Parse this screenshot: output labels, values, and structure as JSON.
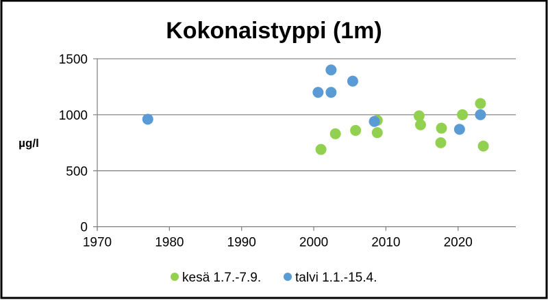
{
  "chart_data": {
    "type": "scatter",
    "title": "Kokonaistyppi (1m)",
    "xlabel": "",
    "ylabel": "µg/l",
    "xlim": [
      1970,
      2028
    ],
    "ylim": [
      0,
      1500
    ],
    "xticks": [
      1970,
      1980,
      1990,
      2000,
      2010,
      2020
    ],
    "yticks": [
      0,
      500,
      1000,
      1500
    ],
    "grid": "horizontal",
    "legend_position": "bottom",
    "series": [
      {
        "name": "kesä 1.7.-7.9.",
        "color": "#92d050",
        "points": [
          {
            "x": 2001.0,
            "y": 690
          },
          {
            "x": 2003.0,
            "y": 830
          },
          {
            "x": 2005.8,
            "y": 860
          },
          {
            "x": 2008.8,
            "y": 950
          },
          {
            "x": 2008.8,
            "y": 840
          },
          {
            "x": 2014.6,
            "y": 990
          },
          {
            "x": 2014.8,
            "y": 910
          },
          {
            "x": 2017.7,
            "y": 880
          },
          {
            "x": 2017.6,
            "y": 750
          },
          {
            "x": 2020.6,
            "y": 1000
          },
          {
            "x": 2023.1,
            "y": 1100
          },
          {
            "x": 2023.5,
            "y": 720
          }
        ]
      },
      {
        "name": "talvi 1.1.-15.4.",
        "color": "#5b9bd5",
        "points": [
          {
            "x": 1977.0,
            "y": 960
          },
          {
            "x": 2000.6,
            "y": 1200
          },
          {
            "x": 2002.4,
            "y": 1400
          },
          {
            "x": 2002.4,
            "y": 1200
          },
          {
            "x": 2005.4,
            "y": 1300
          },
          {
            "x": 2008.4,
            "y": 940
          },
          {
            "x": 2020.2,
            "y": 870
          },
          {
            "x": 2023.1,
            "y": 1000
          }
        ]
      }
    ]
  }
}
